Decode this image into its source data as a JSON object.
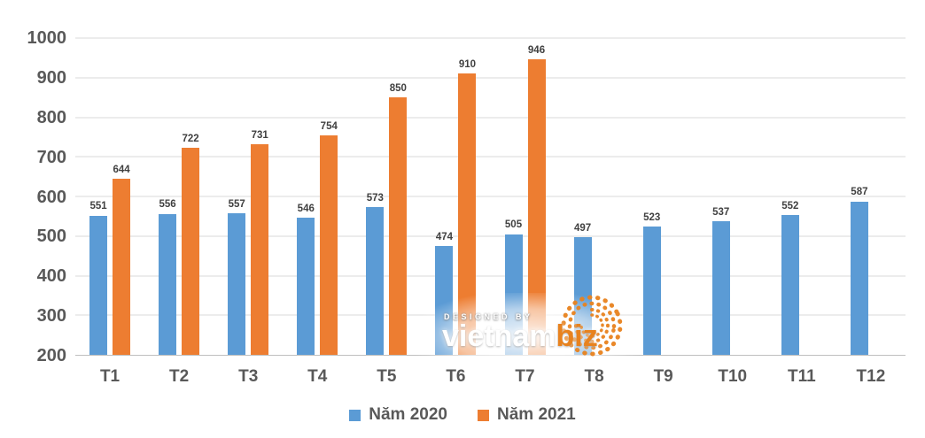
{
  "chart_data": {
    "type": "bar",
    "title": "",
    "xlabel": "",
    "ylabel": "",
    "categories": [
      "T1",
      "T2",
      "T3",
      "T4",
      "T5",
      "T6",
      "T7",
      "T8",
      "T9",
      "T10",
      "T11",
      "T12"
    ],
    "series": [
      {
        "name": "Năm 2020",
        "color": "#5B9BD5",
        "values": [
          551,
          556,
          557,
          546,
          573,
          474,
          505,
          497,
          523,
          537,
          552,
          587
        ]
      },
      {
        "name": "Năm 2021",
        "color": "#ED7D31",
        "values": [
          644,
          722,
          731,
          754,
          850,
          910,
          946,
          null,
          null,
          null,
          null,
          null
        ]
      }
    ],
    "ylim": [
      200,
      1000
    ],
    "yticks": [
      200,
      300,
      400,
      500,
      600,
      700,
      800,
      900,
      1000
    ],
    "grid": true,
    "data_labels": true,
    "legend_position": "bottom"
  },
  "watermark": {
    "line1": "DESIGNED BY",
    "brand_white": "vietnam",
    "brand_orange": "biz"
  },
  "colors": {
    "series_2020": "#5B9BD5",
    "series_2021": "#ED7D31",
    "gridline": "#D9D9D9",
    "axis_line": "#BFBFBF",
    "axis_text": "#595959",
    "data_label_text": "#404040",
    "watermark_orange": "#E8821E",
    "background": "#FFFFFF"
  }
}
